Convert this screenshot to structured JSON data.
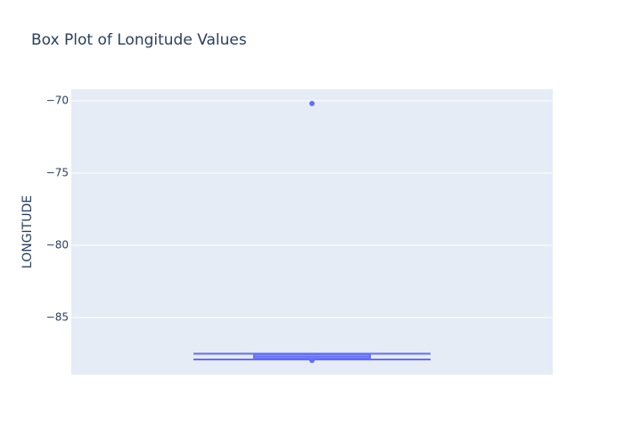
{
  "chart_data": {
    "type": "box",
    "title": "Box Plot of Longitude Values",
    "y_label": "LONGITUDE",
    "color": "#636efa",
    "lowerfence": -87.9,
    "q1": -87.84,
    "median": -87.69,
    "q3": -87.53,
    "upperfence": -87.5,
    "outliers": [
      -70.19,
      -87.96
    ],
    "ylim": [
      -88.95,
      -69.2
    ],
    "yticks": [
      {
        "value": -70,
        "label": "−70"
      },
      {
        "value": -75,
        "label": "−75"
      },
      {
        "value": -80,
        "label": "−80"
      },
      {
        "value": -85,
        "label": "−85"
      }
    ],
    "grid": true
  }
}
